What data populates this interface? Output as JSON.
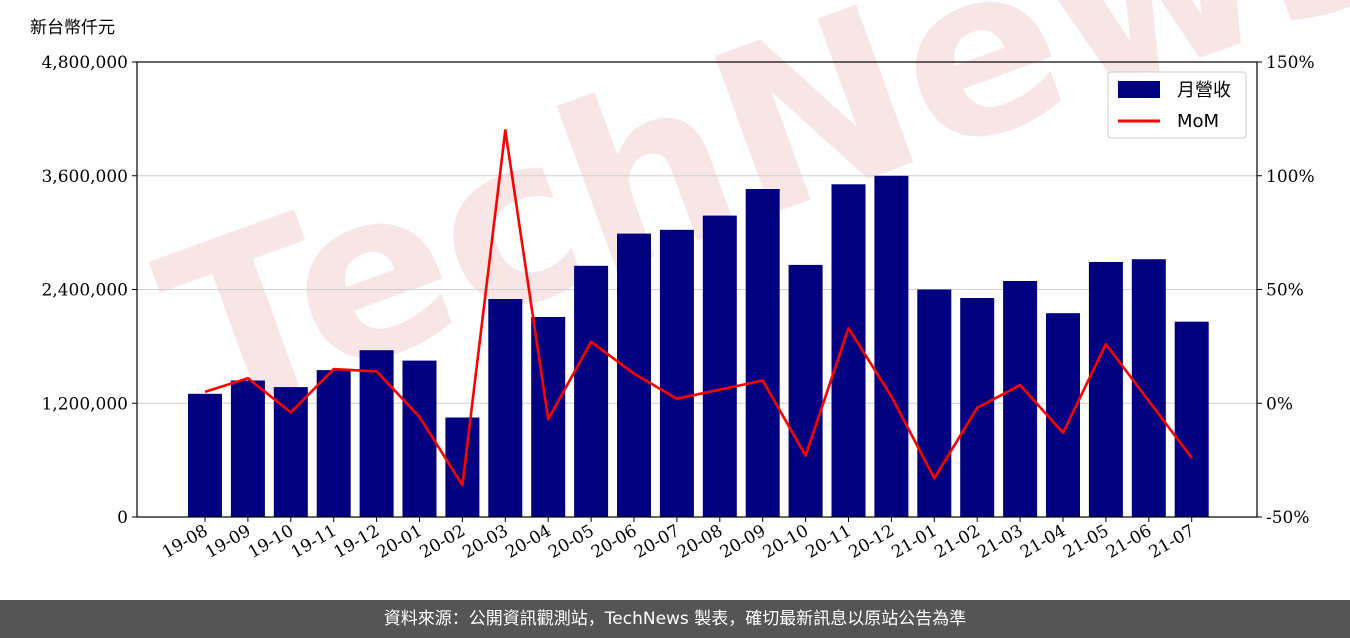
{
  "chart_data": {
    "type": "bar",
    "y_unit_label": "新台幣仟元",
    "categories": [
      "19-08",
      "19-09",
      "19-10",
      "19-11",
      "19-12",
      "20-01",
      "20-02",
      "20-03",
      "20-04",
      "20-05",
      "20-06",
      "20-07",
      "20-08",
      "20-09",
      "20-10",
      "20-11",
      "20-12",
      "21-01",
      "21-02",
      "21-03",
      "21-04",
      "21-05",
      "21-06",
      "21-07"
    ],
    "series": [
      {
        "name": "月營收",
        "type": "bar",
        "axis": "left",
        "color": "#000080",
        "values": [
          1300000,
          1440000,
          1370000,
          1550000,
          1760000,
          1650000,
          1050000,
          2300000,
          2110000,
          2650000,
          2990000,
          3030000,
          3180000,
          3460000,
          2660000,
          3510000,
          3600000,
          2400000,
          2310000,
          2490000,
          2150000,
          2690000,
          2720000,
          2060000
        ]
      },
      {
        "name": "MoM",
        "type": "line",
        "axis": "right",
        "color": "#ff0000",
        "values": [
          5,
          11,
          -4,
          15,
          14,
          -6,
          -36,
          120,
          -7,
          27,
          13,
          2,
          6,
          10,
          -23,
          33,
          3,
          -33,
          -2,
          8,
          -13,
          26,
          1,
          -24
        ]
      }
    ],
    "left_axis": {
      "min": 0,
      "max": 4800000,
      "ticks": [
        0,
        1200000,
        2400000,
        3600000,
        4800000
      ],
      "tick_labels": [
        "0",
        "1,200,000",
        "2,400,000",
        "3,600,000",
        "4,800,000"
      ]
    },
    "right_axis": {
      "min": -50,
      "max": 150,
      "ticks": [
        -50,
        0,
        50,
        100,
        150
      ],
      "tick_labels": [
        "-50%",
        "0%",
        "50%",
        "100%",
        "150%"
      ]
    },
    "grid": "horizontal",
    "legend_position": "top-right",
    "watermark": "TechNews"
  },
  "footer": {
    "text": "資料來源：公開資訊觀測站，TechNews 製表，確切最新訊息以原站公告為準"
  }
}
